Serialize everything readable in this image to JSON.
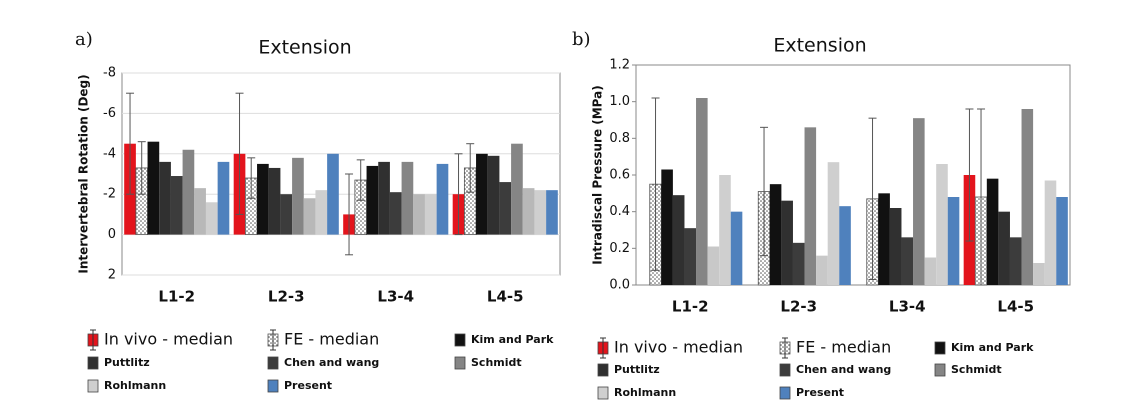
{
  "chart_data": [
    {
      "type": "bar",
      "panel": "a)",
      "title": "Extension",
      "y_label": "Intervertebral Rotation (Deg)",
      "categories": [
        "L1-2",
        "L2-3",
        "L3-4",
        "L4-5"
      ],
      "ylim": [
        2,
        -8
      ],
      "yticks": [
        2,
        0,
        -2,
        -4,
        -6,
        -8
      ],
      "grid": true,
      "series": [
        {
          "name": "In vivo - median",
          "color": "#e3141c",
          "values": [
            -4.5,
            -4.0,
            -1.0,
            -2.0
          ],
          "errors": [
            2.5,
            3.0,
            2.0,
            2.0
          ]
        },
        {
          "name": "FE - median",
          "color": "#ffffff",
          "pattern": "dots",
          "values": [
            -3.3,
            -2.8,
            -2.7,
            -3.3
          ],
          "errors": [
            1.3,
            1.0,
            1.0,
            1.2
          ]
        },
        {
          "name": "Kim and Park",
          "color": "#111111",
          "values": [
            -4.6,
            -3.5,
            -3.4,
            -4.0
          ]
        },
        {
          "name": "Puttlitz",
          "color": "#303030",
          "values": [
            -3.6,
            -3.3,
            -3.6,
            -3.9
          ]
        },
        {
          "name": "Chen and wang",
          "color": "#3c3c3c",
          "values": [
            -2.9,
            -2.0,
            -2.1,
            -2.6
          ]
        },
        {
          "name": "Schmidt",
          "color": "#858585",
          "values": [
            -4.2,
            -3.8,
            -3.6,
            -4.5
          ]
        },
        {
          "name": null,
          "color": "#b8b8b8",
          "values": [
            -2.3,
            -1.8,
            -2.0,
            -2.3
          ]
        },
        {
          "name": "Rohlmann",
          "color": "#cfcfcf",
          "values": [
            -1.6,
            -2.2,
            -2.0,
            -2.2
          ]
        },
        {
          "name": "Present",
          "color": "#4f81bd",
          "values": [
            -3.6,
            -4.0,
            -3.5,
            -2.2
          ]
        }
      ]
    },
    {
      "type": "bar",
      "panel": "b)",
      "title": "Extension",
      "y_label": "Intradiscal Pressure (MPa)",
      "categories": [
        "L1-2",
        "L2-3",
        "L3-4",
        "L4-5"
      ],
      "ylim": [
        0,
        1.2
      ],
      "yticks": [
        {
          "value": 0,
          "label": "0.0"
        },
        0.2,
        0.4,
        0.6,
        0.8,
        {
          "value": 1,
          "label": "1.0"
        },
        1.2
      ],
      "grid": false,
      "series": [
        {
          "name": "In vivo - median",
          "color": "#e3141c",
          "values": [
            null,
            null,
            null,
            0.6
          ],
          "errors": [
            null,
            null,
            null,
            0.36
          ]
        },
        {
          "name": "FE - median",
          "color": "#ffffff",
          "pattern": "dots",
          "values": [
            0.55,
            0.51,
            0.47,
            0.48
          ],
          "errors": [
            0.47,
            0.35,
            0.44,
            0.48
          ]
        },
        {
          "name": "Kim and Park",
          "color": "#111111",
          "values": [
            0.63,
            0.55,
            0.5,
            0.58
          ]
        },
        {
          "name": "Puttlitz",
          "color": "#303030",
          "values": [
            0.49,
            0.46,
            0.42,
            0.4
          ]
        },
        {
          "name": "Chen and wang",
          "color": "#3c3c3c",
          "values": [
            0.31,
            0.23,
            0.26,
            0.26
          ]
        },
        {
          "name": "Schmidt",
          "color": "#858585",
          "values": [
            1.02,
            0.86,
            0.91,
            0.96
          ]
        },
        {
          "name": null,
          "color": "#c8c8c8",
          "values": [
            0.21,
            0.16,
            0.15,
            0.12
          ]
        },
        {
          "name": "Rohlmann",
          "color": "#cfcfcf",
          "values": [
            0.6,
            0.67,
            0.66,
            0.57
          ]
        },
        {
          "name": "Present",
          "color": "#4f81bd",
          "values": [
            0.4,
            0.43,
            0.48,
            0.48
          ]
        }
      ]
    }
  ]
}
